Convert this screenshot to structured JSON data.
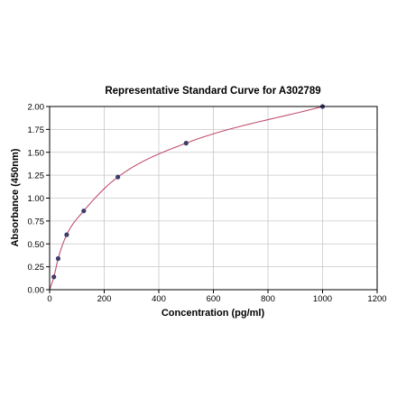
{
  "chart_data": {
    "type": "scatter",
    "title": "Representative Standard Curve for A302789",
    "xlabel": "Concentration (pg/ml)",
    "ylabel": "Absorbance (450nm)",
    "xlim": [
      0,
      1200
    ],
    "ylim": [
      0,
      2.0
    ],
    "x_ticks": [
      "0",
      "200",
      "400",
      "600",
      "800",
      "1000",
      "1200"
    ],
    "y_ticks": [
      "0.00",
      "0.25",
      "0.50",
      "0.75",
      "1.00",
      "1.25",
      "1.50",
      "1.75",
      "2.00"
    ],
    "grid": true,
    "series": [
      {
        "x": [
          15.6,
          31.25,
          62.5,
          125,
          250,
          500,
          1000
        ],
        "y": [
          0.14,
          0.34,
          0.6,
          0.86,
          1.23,
          1.6,
          2.0
        ]
      }
    ],
    "fit_curve": true,
    "colors": {
      "point": "#3d3d6b",
      "curve": "#c0506e",
      "grid": "#c8c8c8",
      "axis": "#000000"
    }
  }
}
